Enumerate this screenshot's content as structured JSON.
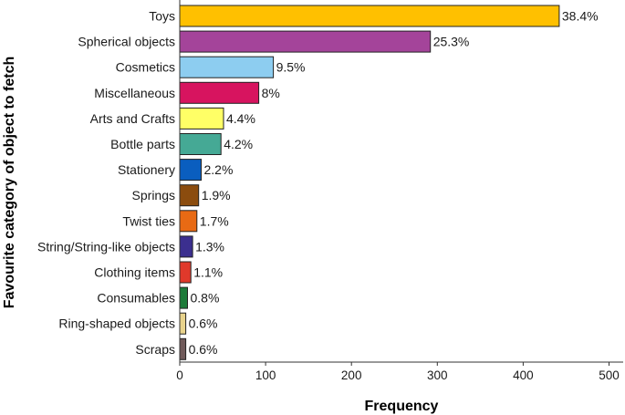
{
  "chart_data": {
    "type": "bar",
    "orientation": "horizontal",
    "xlabel": "Frequency",
    "ylabel": "Favourite category of object to fetch",
    "xlim": [
      0,
      500
    ],
    "xticks": [
      0,
      100,
      200,
      300,
      400,
      500
    ],
    "grid": false,
    "bars": [
      {
        "category": "Toys",
        "value": 442,
        "label": "38.4%",
        "color": "#FFC000"
      },
      {
        "category": "Spherical objects",
        "value": 292,
        "label": "25.3%",
        "color": "#A4449A"
      },
      {
        "category": "Cosmetics",
        "value": 109,
        "label": "9.5%",
        "color": "#8DCDF0"
      },
      {
        "category": "Miscellaneous",
        "value": 92,
        "label": "8%",
        "color": "#D7145F"
      },
      {
        "category": "Arts and Crafts",
        "value": 51,
        "label": "4.4%",
        "color": "#FFFF66"
      },
      {
        "category": "Bottle parts",
        "value": 48,
        "label": "4.2%",
        "color": "#45A995"
      },
      {
        "category": "Stationery",
        "value": 25,
        "label": "2.2%",
        "color": "#0A5EBF"
      },
      {
        "category": "Springs",
        "value": 22,
        "label": "1.9%",
        "color": "#8B4C0E"
      },
      {
        "category": "Twist ties",
        "value": 20,
        "label": "1.7%",
        "color": "#E86A14"
      },
      {
        "category": "String/String-like objects",
        "value": 15,
        "label": "1.3%",
        "color": "#3B2F8F"
      },
      {
        "category": "Clothing items",
        "value": 13,
        "label": "1.1%",
        "color": "#E0392B"
      },
      {
        "category": "Consumables",
        "value": 9,
        "label": "0.8%",
        "color": "#1E7B3A"
      },
      {
        "category": "Ring-shaped objects",
        "value": 7,
        "label": "0.6%",
        "color": "#E8D38C"
      },
      {
        "category": "Scraps",
        "value": 7,
        "label": "0.6%",
        "color": "#705A5A"
      }
    ]
  }
}
